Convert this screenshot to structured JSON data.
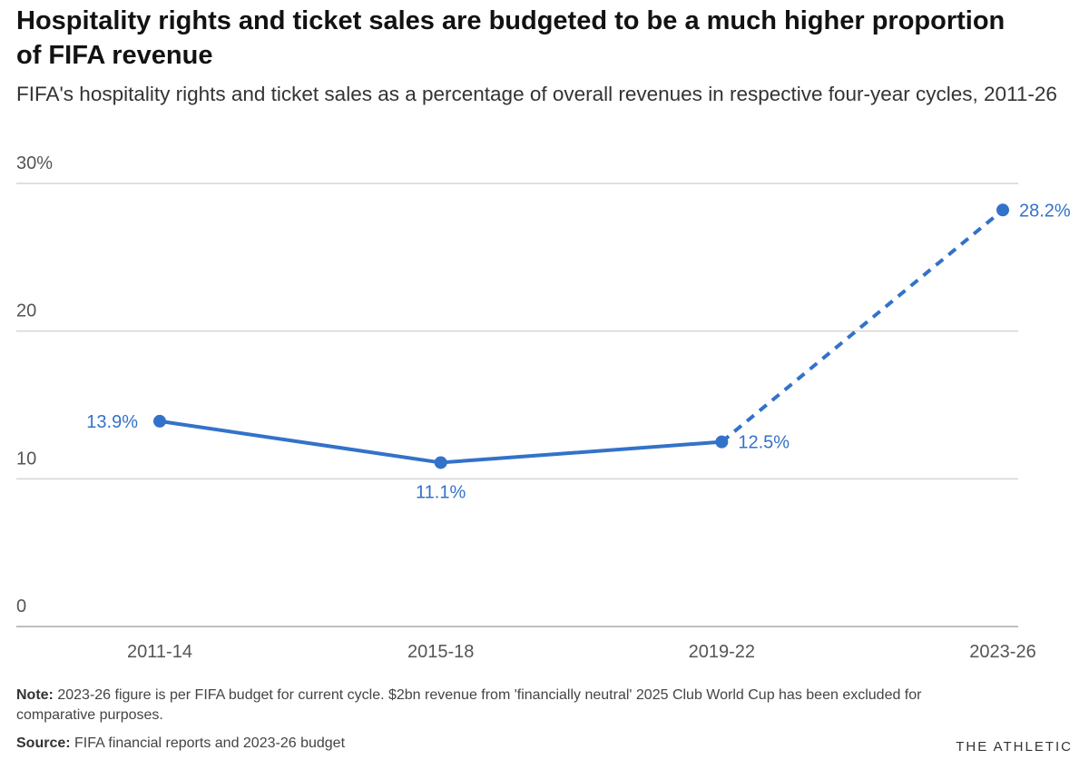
{
  "chart_data": {
    "type": "line",
    "title": "Hospitality rights and ticket sales are budgeted to be a much higher proportion of FIFA revenue",
    "subtitle": "FIFA's hospitality rights and ticket sales as a percentage of overall revenues in respective four-year cycles, 2011-26",
    "categories": [
      "2011-14",
      "2015-18",
      "2019-22",
      "2023-26"
    ],
    "values": [
      13.9,
      11.1,
      12.5,
      28.2
    ],
    "value_labels": [
      "13.9%",
      "11.1%",
      "12.5%",
      "28.2%"
    ],
    "projected": [
      false,
      false,
      false,
      true
    ],
    "color": "#3372c9",
    "ylim": [
      0,
      30
    ],
    "yticks": [
      0,
      10,
      20,
      {
        "value": 30,
        "label": "30%"
      }
    ],
    "grid": true,
    "note_label": "Note:",
    "note": "2023-26 figure is per FIFA budget for current cycle. $2bn revenue from 'financially neutral' 2025 Club World Cup has been excluded for comparative purposes.",
    "source_label": "Source:",
    "source": "FIFA financial reports and 2023-26 budget",
    "brand": "THE ATHLETIC"
  }
}
